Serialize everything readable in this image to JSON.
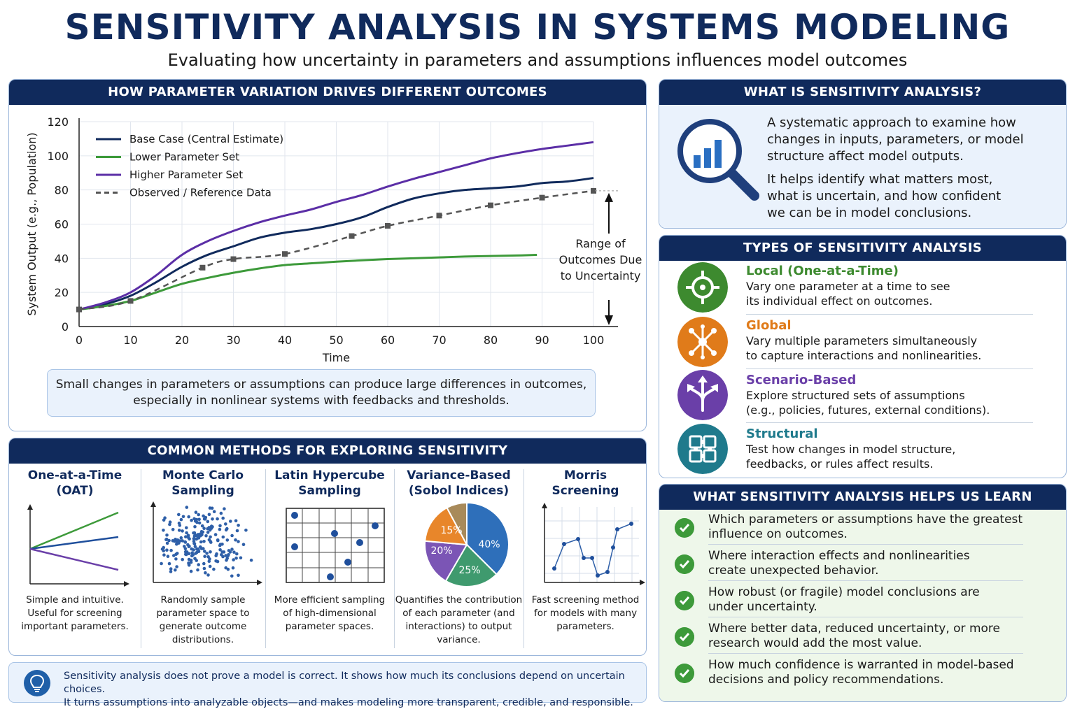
{
  "title": "SENSITIVITY ANALYSIS IN SYSTEMS MODELING",
  "subtitle": "Evaluating how uncertainty in parameters and assumptions influences model outcomes",
  "chart_panel": {
    "header": "HOW PARAMETER VARIATION DRIVES DIFFERENT OUTCOMES",
    "caption_line1": "Small changes in parameters or assumptions can produce large differences in outcomes,",
    "caption_line2": "especially in nonlinear systems with feedbacks and thresholds."
  },
  "chart_data": {
    "type": "line",
    "xlabel": "Time",
    "ylabel": "System Output (e.g., Population)",
    "xlim": [
      0,
      100
    ],
    "ylim": [
      0,
      120
    ],
    "xticks": [
      0,
      10,
      20,
      30,
      40,
      50,
      60,
      70,
      80,
      90,
      100
    ],
    "yticks": [
      0,
      20,
      40,
      60,
      80,
      100,
      120
    ],
    "grid": true,
    "legend": "top-left",
    "annotation": [
      "Range of",
      "Outcomes Due",
      "to Uncertainty"
    ],
    "series": [
      {
        "name": "Base Case (Central Estimate)",
        "color": "#102a5c",
        "style": "solid",
        "x": [
          0,
          5,
          10,
          15,
          20,
          25,
          30,
          35,
          40,
          45,
          50,
          55,
          60,
          65,
          70,
          75,
          80,
          85,
          90,
          95,
          100
        ],
        "y": [
          10,
          13,
          18,
          26,
          35,
          42,
          47,
          52,
          55,
          57,
          60,
          64,
          70,
          75,
          78,
          80,
          81,
          82,
          84,
          85,
          87
        ]
      },
      {
        "name": "Lower Parameter Set",
        "color": "#3d9a3a",
        "style": "solid",
        "x": [
          0,
          5,
          10,
          15,
          20,
          25,
          30,
          35,
          40,
          45,
          50,
          55,
          60,
          65,
          70,
          75,
          80,
          85,
          89
        ],
        "y": [
          10,
          12,
          15,
          20,
          25,
          28.5,
          31.5,
          34,
          36,
          37,
          38,
          38.8,
          39.5,
          40,
          40.5,
          41,
          41.3,
          41.6,
          42
        ]
      },
      {
        "name": "Higher Parameter Set",
        "color": "#5b2ea6",
        "style": "solid",
        "x": [
          0,
          5,
          10,
          15,
          20,
          25,
          30,
          35,
          40,
          45,
          50,
          55,
          60,
          65,
          70,
          75,
          80,
          85,
          90,
          95,
          100
        ],
        "y": [
          10,
          14,
          20,
          30,
          42,
          50,
          56,
          61,
          65,
          68.5,
          73,
          77,
          82,
          86.5,
          90.5,
          94.5,
          98.5,
          101.5,
          104,
          106,
          108
        ]
      },
      {
        "name": "Observed / Reference Data",
        "color": "#555555",
        "style": "dashed",
        "x": [
          0,
          10,
          24,
          30,
          40,
          53,
          60,
          70,
          80,
          90,
          100
        ],
        "y": [
          10,
          15,
          34.5,
          39.5,
          42.5,
          53,
          59,
          65,
          71,
          75.5,
          79.5
        ]
      }
    ]
  },
  "methods_panel": {
    "header": "COMMON METHODS FOR EXPLORING SENSITIVITY",
    "methods": [
      {
        "title1": "One-at-a-Time",
        "title2": "(OAT)",
        "desc": [
          "Simple and intuitive.",
          "Useful for screening",
          "important parameters."
        ]
      },
      {
        "title1": "Monte Carlo",
        "title2": "Sampling",
        "desc": [
          "Randomly sample",
          "parameter space to",
          "generate outcome",
          "distributions."
        ]
      },
      {
        "title1": "Latin Hypercube",
        "title2": "Sampling",
        "desc": [
          "More efficient sampling",
          "of high-dimensional",
          "parameter spaces."
        ]
      },
      {
        "title1": "Variance-Based",
        "title2": "(Sobol Indices)",
        "desc": [
          "Quantifies the contribution",
          "of each parameter (and",
          "interactions) to output",
          "variance."
        ]
      },
      {
        "title1": "Morris",
        "title2": "Screening",
        "desc": [
          "Fast screening method",
          "for models with many",
          "parameters."
        ]
      }
    ],
    "pie_labels": [
      "40%",
      "25%",
      "20%",
      "15%"
    ]
  },
  "note": {
    "line1": "Sensitivity analysis does not prove a model is correct. It shows how much its conclusions depend on uncertain choices.",
    "line2": "It turns assumptions into analyzable objects—and makes modeling more transparent, credible, and responsible."
  },
  "what_panel": {
    "header": "WHAT IS SENSITIVITY ANALYSIS?",
    "p1": [
      "A systematic approach to examine how",
      "changes in inputs, parameters, or model",
      "structure affect model outputs."
    ],
    "p2": [
      "It helps identify what matters most,",
      "what is uncertain, and how confident",
      "we can be in model conclusions."
    ]
  },
  "types_panel": {
    "header": "TYPES OF SENSITIVITY ANALYSIS",
    "types": [
      {
        "title": "Local (One-at-a-Time)",
        "color": "#3d8a2f",
        "icon": "target-icon",
        "desc": [
          "Vary one parameter at a time to see",
          "its individual effect on outcomes."
        ]
      },
      {
        "title": "Global",
        "color": "#e07b1a",
        "icon": "network-icon",
        "desc": [
          "Vary multiple parameters simultaneously",
          "to capture interactions and nonlinearities."
        ]
      },
      {
        "title": "Scenario-Based",
        "color": "#6a3fa8",
        "icon": "split-arrows-icon",
        "desc": [
          "Explore structured sets of assumptions",
          "(e.g., policies, futures, external conditions)."
        ]
      },
      {
        "title": "Structural",
        "color": "#1f7a8c",
        "icon": "puzzle-icon",
        "desc": [
          "Test how changes in model structure,",
          "feedbacks, or rules affect results."
        ]
      }
    ]
  },
  "learn_panel": {
    "header": "WHAT SENSITIVITY ANALYSIS HELPS US LEARN",
    "items": [
      [
        "Which parameters or assumptions have the greatest",
        "influence on outcomes."
      ],
      [
        "Where interaction effects and nonlinearities",
        "create unexpected behavior."
      ],
      [
        "How robust (or fragile) model conclusions are",
        "under uncertainty."
      ],
      [
        "Where better data, reduced uncertainty, or more",
        "research would add the most value."
      ],
      [
        "How much confidence is warranted in model-based",
        "decisions and policy recommendations."
      ]
    ]
  }
}
